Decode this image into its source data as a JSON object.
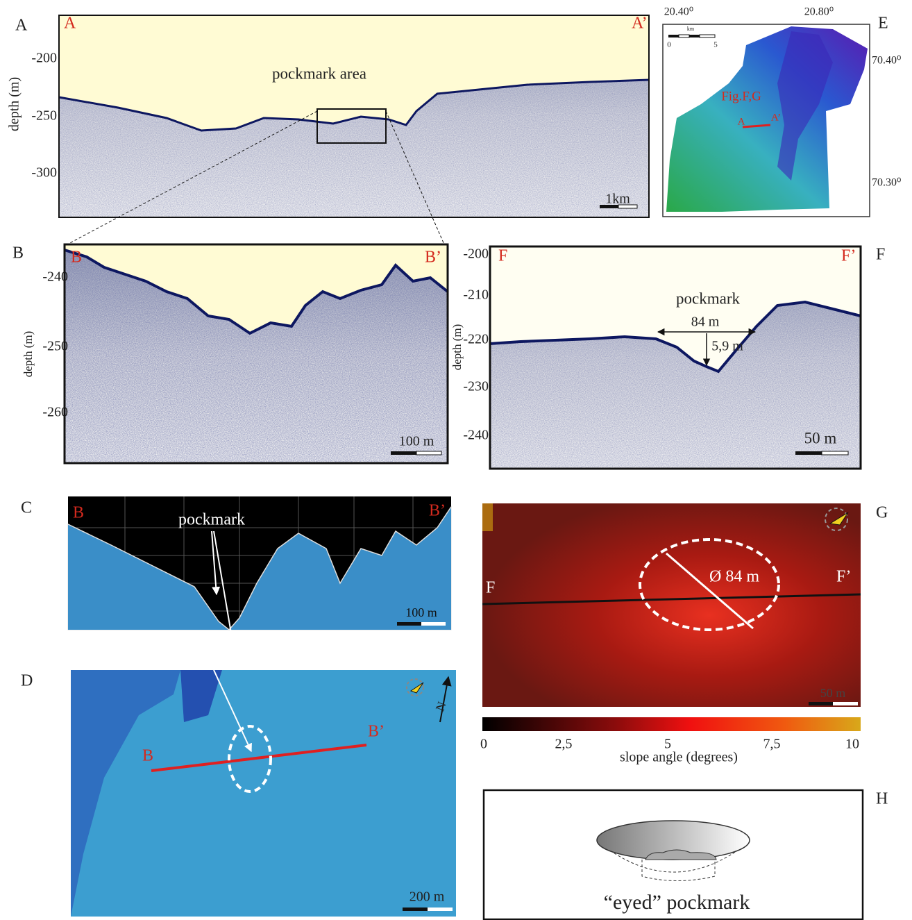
{
  "panels": {
    "A": {
      "letter": "A",
      "left_end": "A",
      "right_end": "A’",
      "y_label": "depth (m)",
      "yticks": [
        -200,
        -250,
        -300
      ],
      "annotation": "pockmark area",
      "scale": "1km"
    },
    "B": {
      "letter": "B",
      "left_end": "B",
      "right_end": "B’",
      "y_label": "depth (m)",
      "yticks": [
        -240,
        -250,
        -260
      ],
      "scale": "100 m"
    },
    "C": {
      "letter": "C",
      "left_end": "B",
      "right_end": "B’",
      "annotation": "pockmark",
      "scale": "100 m"
    },
    "D": {
      "letter": "D",
      "left_end": "B",
      "right_end": "B’",
      "north": "N",
      "scale": "200 m"
    },
    "E": {
      "letter": "E",
      "top_ticks": [
        "20.40⁰",
        "20.80⁰"
      ],
      "right_ticks": [
        "70.40⁰",
        "70.30⁰"
      ],
      "scale_unit": "km",
      "scale_ticks": [
        "0",
        "5"
      ],
      "figure_ref": "Fig.F,G",
      "line_start": "A",
      "line_end": "A’"
    },
    "F": {
      "letter": "F",
      "left_end": "F",
      "right_end": "F’",
      "y_label": "depth (m)",
      "yticks": [
        -200,
        -210,
        -220,
        -230,
        -240
      ],
      "annotation": "pockmark",
      "width": "84 m",
      "depth": "5,9 m",
      "scale": "50 m"
    },
    "G": {
      "letter": "G",
      "left_end": "F",
      "right_end": "F’",
      "diameter": "Ø 84 m",
      "scale": "50 m",
      "colorbar_ticks": [
        "0",
        "2,5",
        "5",
        "7,5",
        "10"
      ],
      "colorbar_label": "slope angle (degrees)"
    },
    "H": {
      "letter": "H",
      "caption": "“eyed” pockmark"
    }
  }
}
